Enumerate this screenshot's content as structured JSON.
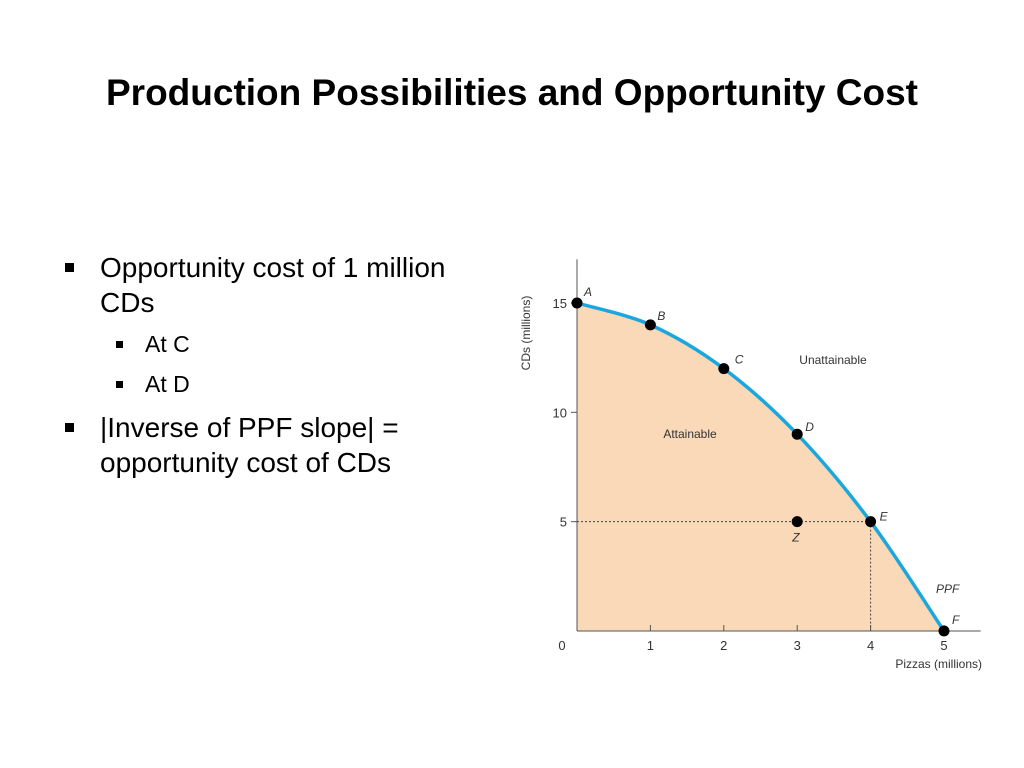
{
  "slide": {
    "title": "Production Possibilities and Opportunity Cost",
    "bullets": [
      {
        "text": "Opportunity cost of 1 million CDs",
        "sub": [
          "At C",
          "At D"
        ]
      },
      {
        "text": "|Inverse of PPF slope| = opportunity cost of CDs"
      }
    ]
  },
  "chart_data": {
    "type": "line",
    "xlabel": "Pizzas (millions)",
    "ylabel": "CDs (millions)",
    "x_ticks": [
      0,
      1,
      2,
      3,
      4,
      5
    ],
    "y_ticks": [
      5,
      10,
      15
    ],
    "xlim": [
      0,
      5.5
    ],
    "ylim": [
      0,
      17
    ],
    "series": [
      {
        "name": "PPF",
        "points": [
          {
            "label": "A",
            "x": 0,
            "y": 15
          },
          {
            "label": "B",
            "x": 1,
            "y": 14
          },
          {
            "label": "C",
            "x": 2,
            "y": 12
          },
          {
            "label": "D",
            "x": 3,
            "y": 9
          },
          {
            "label": "E",
            "x": 4,
            "y": 5
          },
          {
            "label": "F",
            "x": 5,
            "y": 0
          }
        ]
      }
    ],
    "extra_points": [
      {
        "label": "Z",
        "x": 3,
        "y": 5
      }
    ],
    "regions": {
      "inside": "Attainable",
      "outside": "Unattainable"
    },
    "colors": {
      "curve": "#1aa7e0",
      "fill": "#f9d9b8",
      "points": "#000000"
    }
  }
}
